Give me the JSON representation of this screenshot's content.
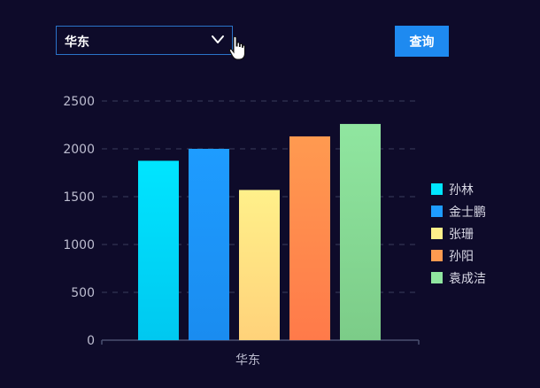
{
  "filter": {
    "selected": "华东",
    "query_label": "查询"
  },
  "chart_data": {
    "type": "bar",
    "categories": [
      "华东"
    ],
    "series": [
      {
        "name": "孙林",
        "values": [
          1875
        ],
        "color_top": "#00e5ff",
        "color_bottom": "#00c8f0"
      },
      {
        "name": "金士鹏",
        "values": [
          2000
        ],
        "color_top": "#1e9cff",
        "color_bottom": "#1a8cf0"
      },
      {
        "name": "张珊",
        "values": [
          1570
        ],
        "color_top": "#fff08a",
        "color_bottom": "#ffd27a"
      },
      {
        "name": "孙阳",
        "values": [
          2130
        ],
        "color_top": "#ff9a50",
        "color_bottom": "#ff7a4a"
      },
      {
        "name": "袁成洁",
        "values": [
          2260
        ],
        "color_top": "#90e6a0",
        "color_bottom": "#7ccc88"
      }
    ],
    "yticks": [
      "0",
      "500",
      "1000",
      "1500",
      "2000",
      "2500"
    ],
    "ylim": [
      0,
      2500
    ],
    "grid": true,
    "legend_position": "right"
  }
}
